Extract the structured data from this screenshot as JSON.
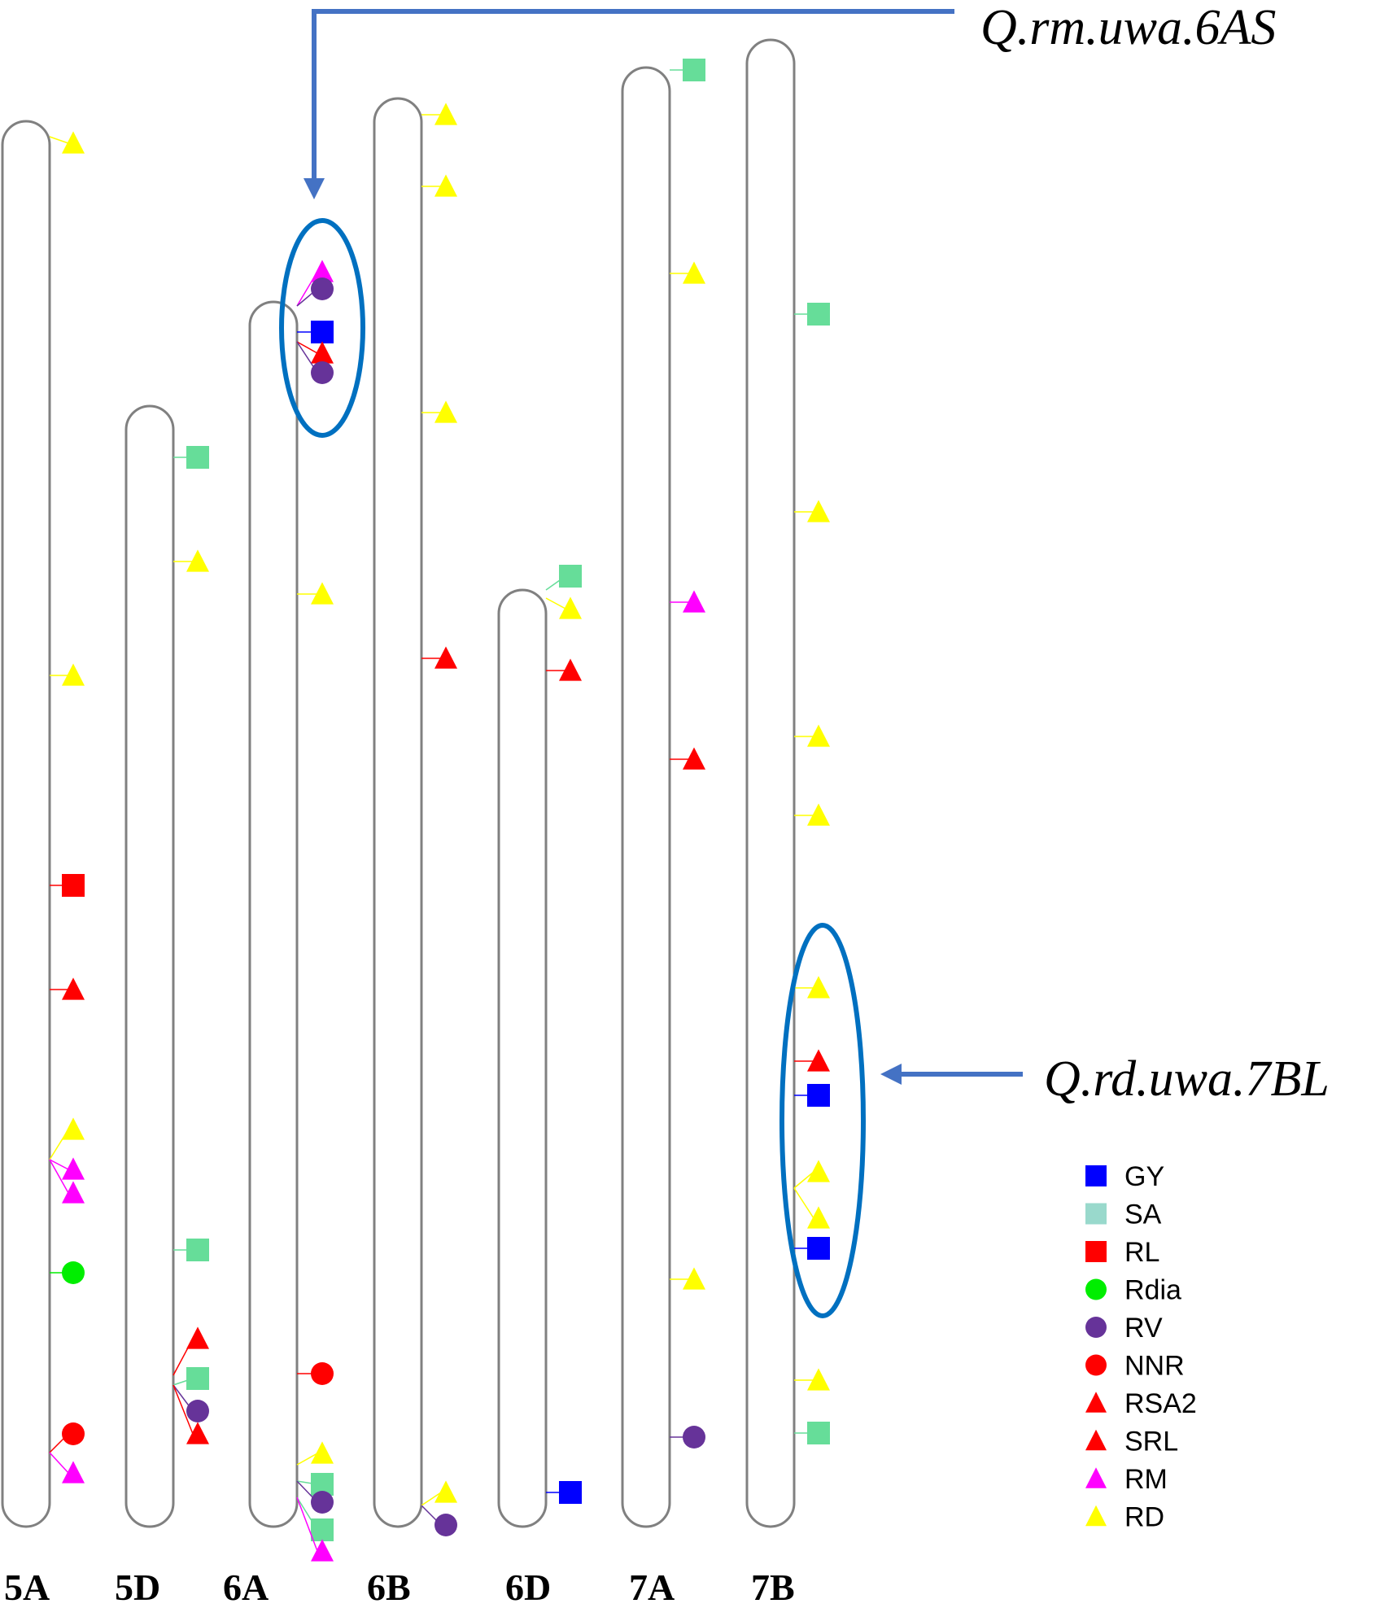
{
  "colors": {
    "GY": "#0000ff",
    "SA": "#66dd99",
    "SA_legend": "#99d9cc",
    "RL": "#ff0000",
    "Rdia": "#00ee00",
    "RV": "#663399",
    "NNR": "#ff0000",
    "RSA2": "#ff0000",
    "SRL": "#ff0000",
    "RM": "#ff00ff",
    "RD": "#ffff00",
    "chromosome_outline": "#808080",
    "annotation": "#0070c0",
    "arrow": "#4472c4"
  },
  "legend": [
    {
      "name": "GY",
      "shape": "square",
      "color": "#0000ff"
    },
    {
      "name": "SA",
      "shape": "square",
      "color": "#99d9cc"
    },
    {
      "name": "RL",
      "shape": "square",
      "color": "#ff0000"
    },
    {
      "name": "Rdia",
      "shape": "circle",
      "color": "#00ee00"
    },
    {
      "name": "RV",
      "shape": "circle",
      "color": "#663399"
    },
    {
      "name": "NNR",
      "shape": "circle",
      "color": "#ff0000"
    },
    {
      "name": "RSA2",
      "shape": "triangle",
      "color": "#ff0000"
    },
    {
      "name": "SRL",
      "shape": "triangle",
      "color": "#ff0000"
    },
    {
      "name": "RM",
      "shape": "triangle",
      "color": "#ff00ff"
    },
    {
      "name": "RD",
      "shape": "triangle",
      "color": "#ffff00"
    }
  ],
  "chromosomes": [
    {
      "label": "5A"
    },
    {
      "label": "5D"
    },
    {
      "label": "6A"
    },
    {
      "label": "6B"
    },
    {
      "label": "6D"
    },
    {
      "label": "7A"
    },
    {
      "label": "7B"
    }
  ],
  "annotations": [
    {
      "label": "Q.rm.uwa.6AS"
    },
    {
      "label": "Q.rd.uwa.7BL"
    }
  ]
}
